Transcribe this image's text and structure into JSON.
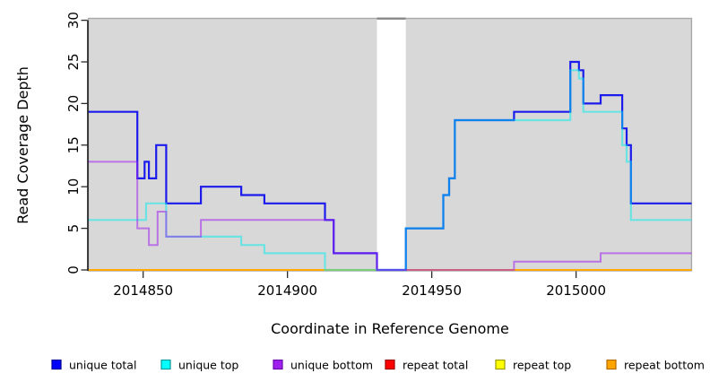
{
  "chart_data": {
    "type": "line",
    "title": "",
    "xlabel": "Coordinate in Reference Genome",
    "ylabel": "Read Coverage Depth",
    "xlim": [
      2014831,
      2015040
    ],
    "ylim": [
      0,
      30
    ],
    "x_ticks": [
      2014850,
      2014900,
      2014950,
      2015000
    ],
    "y_ticks": [
      0,
      5,
      10,
      15,
      20,
      25,
      30
    ],
    "grid": false,
    "legend_position": "bottom",
    "plot_background": "#d8d8d8",
    "box_border_color": "#a8a8a8",
    "axis_line_color": "#2b2b2b",
    "no_data_gap": {
      "x_start": 2014931,
      "x_end": 2014941,
      "top_bar_color": "#878787"
    },
    "draw_order": [
      "repeat total",
      "repeat top",
      "repeat bottom",
      "unique total",
      "unique top",
      "unique bottom"
    ],
    "series": [
      {
        "name": "unique total",
        "line_color": "#0000EE",
        "line_alpha": 0.88,
        "line_width": 2.2,
        "swatch_fill": "#0000FF",
        "swatch_border": "#00009B",
        "x_end": 2015040,
        "steps": [
          [
            2014831,
            19
          ],
          [
            2014848,
            11
          ],
          [
            2014850.5,
            13
          ],
          [
            2014852,
            11
          ],
          [
            2014854.5,
            15
          ],
          [
            2014858,
            8
          ],
          [
            2014870,
            10
          ],
          [
            2014884,
            9
          ],
          [
            2014892,
            8
          ],
          [
            2014913,
            6
          ],
          [
            2014916,
            2
          ],
          [
            2014931,
            0
          ],
          [
            2014941,
            5
          ],
          [
            2014954,
            9
          ],
          [
            2014956,
            11
          ],
          [
            2014958,
            18
          ],
          [
            2014978.5,
            19
          ],
          [
            2014998,
            25
          ],
          [
            2015001,
            24
          ],
          [
            2015002.5,
            20
          ],
          [
            2015008.5,
            21
          ],
          [
            2015016,
            17
          ],
          [
            2015017.5,
            15
          ],
          [
            2015019,
            8
          ]
        ]
      },
      {
        "name": "unique top",
        "line_color": "#00EEEE",
        "line_alpha": 0.5,
        "line_width": 2.2,
        "swatch_fill": "#00FFFF",
        "swatch_border": "#00999B",
        "x_end": 2015040,
        "steps": [
          [
            2014831,
            6
          ],
          [
            2014851,
            8
          ],
          [
            2014858,
            4
          ],
          [
            2014884,
            3
          ],
          [
            2014892,
            2
          ],
          [
            2014913,
            0
          ],
          [
            2014941,
            5
          ],
          [
            2014954,
            9
          ],
          [
            2014956,
            11
          ],
          [
            2014958,
            18
          ],
          [
            2014998,
            24
          ],
          [
            2015001,
            23
          ],
          [
            2015002.5,
            19
          ],
          [
            2015016,
            15
          ],
          [
            2015017.5,
            13
          ],
          [
            2015019,
            6
          ]
        ]
      },
      {
        "name": "unique bottom",
        "line_color": "#A020F0",
        "line_alpha": 0.55,
        "line_width": 2.0,
        "swatch_fill": "#A020F0",
        "swatch_border": "#6A0DAD",
        "x_end": 2015040,
        "steps": [
          [
            2014831,
            13
          ],
          [
            2014848,
            5
          ],
          [
            2014852,
            3
          ],
          [
            2014855,
            7
          ],
          [
            2014858,
            4
          ],
          [
            2014870,
            6
          ],
          [
            2014916,
            2
          ],
          [
            2014931,
            0
          ],
          [
            2014978.5,
            1
          ],
          [
            2015008.5,
            2
          ]
        ]
      },
      {
        "name": "repeat total",
        "line_color": "#EE0000",
        "line_alpha": 1,
        "line_width": 1.8,
        "swatch_fill": "#FF0000",
        "swatch_border": "#990000",
        "x_end": 2015040,
        "steps": [
          [
            2014831,
            0
          ]
        ]
      },
      {
        "name": "repeat top",
        "line_color": "#FFFF00",
        "line_alpha": 1,
        "line_width": 1.8,
        "swatch_fill": "#FFFF00",
        "swatch_border": "#9B9B00",
        "x_end": 2015040,
        "steps": [
          [
            2014831,
            0
          ]
        ]
      },
      {
        "name": "repeat bottom",
        "line_color": "#FFA500",
        "line_alpha": 1,
        "line_width": 1.8,
        "swatch_fill": "#FFA500",
        "swatch_border": "#B36B00",
        "x_end": 2015040,
        "steps": [
          [
            2014831,
            0
          ]
        ]
      }
    ]
  }
}
